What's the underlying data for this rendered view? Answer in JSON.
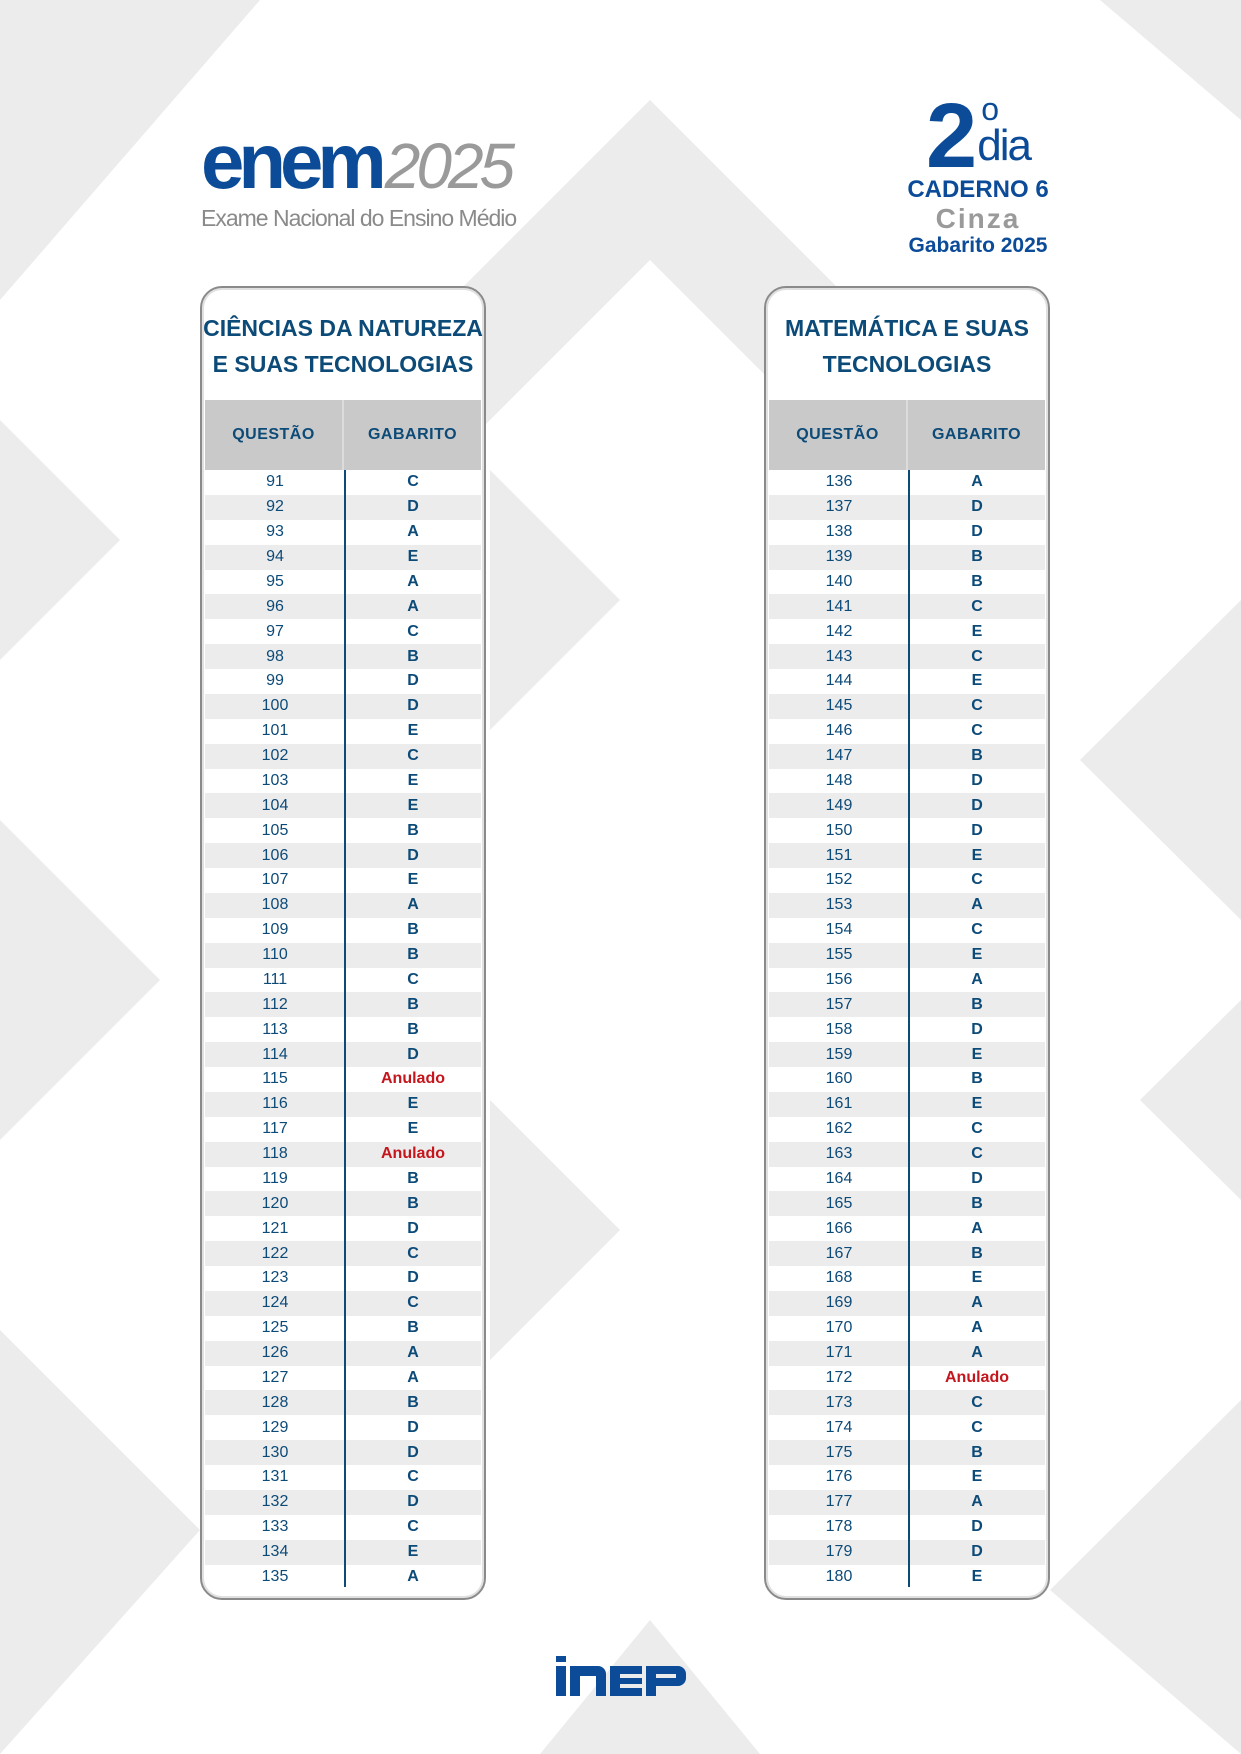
{
  "header": {
    "logo_text": "enem",
    "logo_year": "2025",
    "logo_subtitle": "Exame Nacional do Ensino Médio",
    "day_number": "2",
    "day_ordinal": "o",
    "day_label": "dia",
    "booklet": "CADERNO 6",
    "booklet_color": "Cinza",
    "answer_key_title": "Gabarito 2025"
  },
  "colors": {
    "brand_blue": "#0b4b98",
    "text_blue": "#0c4a78",
    "annulled_red": "#c4161c",
    "header_gray": "#c9c9c9"
  },
  "tables": [
    {
      "title_line1": "CIÊNCIAS DA NATUREZA",
      "title_line2": "E SUAS TECNOLOGIAS",
      "col_question": "QUESTÃO",
      "col_answer": "GABARITO",
      "rows": [
        {
          "q": "91",
          "a": "C"
        },
        {
          "q": "92",
          "a": "D"
        },
        {
          "q": "93",
          "a": "A"
        },
        {
          "q": "94",
          "a": "E"
        },
        {
          "q": "95",
          "a": "A"
        },
        {
          "q": "96",
          "a": "A"
        },
        {
          "q": "97",
          "a": "C"
        },
        {
          "q": "98",
          "a": "B"
        },
        {
          "q": "99",
          "a": "D"
        },
        {
          "q": "100",
          "a": "D"
        },
        {
          "q": "101",
          "a": "E"
        },
        {
          "q": "102",
          "a": "C"
        },
        {
          "q": "103",
          "a": "E"
        },
        {
          "q": "104",
          "a": "E"
        },
        {
          "q": "105",
          "a": "B"
        },
        {
          "q": "106",
          "a": "D"
        },
        {
          "q": "107",
          "a": "E"
        },
        {
          "q": "108",
          "a": "A"
        },
        {
          "q": "109",
          "a": "B"
        },
        {
          "q": "110",
          "a": "B"
        },
        {
          "q": "111",
          "a": "C"
        },
        {
          "q": "112",
          "a": "B"
        },
        {
          "q": "113",
          "a": "B"
        },
        {
          "q": "114",
          "a": "D"
        },
        {
          "q": "115",
          "a": "Anulado"
        },
        {
          "q": "116",
          "a": "E"
        },
        {
          "q": "117",
          "a": "E"
        },
        {
          "q": "118",
          "a": "Anulado"
        },
        {
          "q": "119",
          "a": "B"
        },
        {
          "q": "120",
          "a": "B"
        },
        {
          "q": "121",
          "a": "D"
        },
        {
          "q": "122",
          "a": "C"
        },
        {
          "q": "123",
          "a": "D"
        },
        {
          "q": "124",
          "a": "C"
        },
        {
          "q": "125",
          "a": "B"
        },
        {
          "q": "126",
          "a": "A"
        },
        {
          "q": "127",
          "a": "A"
        },
        {
          "q": "128",
          "a": "B"
        },
        {
          "q": "129",
          "a": "D"
        },
        {
          "q": "130",
          "a": "D"
        },
        {
          "q": "131",
          "a": "C"
        },
        {
          "q": "132",
          "a": "D"
        },
        {
          "q": "133",
          "a": "C"
        },
        {
          "q": "134",
          "a": "E"
        },
        {
          "q": "135",
          "a": "A"
        }
      ]
    },
    {
      "title_line1": "MATEMÁTICA E SUAS",
      "title_line2": "TECNOLOGIAS",
      "col_question": "QUESTÃO",
      "col_answer": "GABARITO",
      "rows": [
        {
          "q": "136",
          "a": "A"
        },
        {
          "q": "137",
          "a": "D"
        },
        {
          "q": "138",
          "a": "D"
        },
        {
          "q": "139",
          "a": "B"
        },
        {
          "q": "140",
          "a": "B"
        },
        {
          "q": "141",
          "a": "C"
        },
        {
          "q": "142",
          "a": "E"
        },
        {
          "q": "143",
          "a": "C"
        },
        {
          "q": "144",
          "a": "E"
        },
        {
          "q": "145",
          "a": "C"
        },
        {
          "q": "146",
          "a": "C"
        },
        {
          "q": "147",
          "a": "B"
        },
        {
          "q": "148",
          "a": "D"
        },
        {
          "q": "149",
          "a": "D"
        },
        {
          "q": "150",
          "a": "D"
        },
        {
          "q": "151",
          "a": "E"
        },
        {
          "q": "152",
          "a": "C"
        },
        {
          "q": "153",
          "a": "A"
        },
        {
          "q": "154",
          "a": "C"
        },
        {
          "q": "155",
          "a": "E"
        },
        {
          "q": "156",
          "a": "A"
        },
        {
          "q": "157",
          "a": "B"
        },
        {
          "q": "158",
          "a": "D"
        },
        {
          "q": "159",
          "a": "E"
        },
        {
          "q": "160",
          "a": "B"
        },
        {
          "q": "161",
          "a": "E"
        },
        {
          "q": "162",
          "a": "C"
        },
        {
          "q": "163",
          "a": "C"
        },
        {
          "q": "164",
          "a": "D"
        },
        {
          "q": "165",
          "a": "B"
        },
        {
          "q": "166",
          "a": "A"
        },
        {
          "q": "167",
          "a": "B"
        },
        {
          "q": "168",
          "a": "E"
        },
        {
          "q": "169",
          "a": "A"
        },
        {
          "q": "170",
          "a": "A"
        },
        {
          "q": "171",
          "a": "A"
        },
        {
          "q": "172",
          "a": "Anulado"
        },
        {
          "q": "173",
          "a": "C"
        },
        {
          "q": "174",
          "a": "C"
        },
        {
          "q": "175",
          "a": "B"
        },
        {
          "q": "176",
          "a": "E"
        },
        {
          "q": "177",
          "a": "A"
        },
        {
          "q": "178",
          "a": "D"
        },
        {
          "q": "179",
          "a": "D"
        },
        {
          "q": "180",
          "a": "E"
        }
      ]
    }
  ],
  "footer": {
    "logo_text": "INEP"
  }
}
